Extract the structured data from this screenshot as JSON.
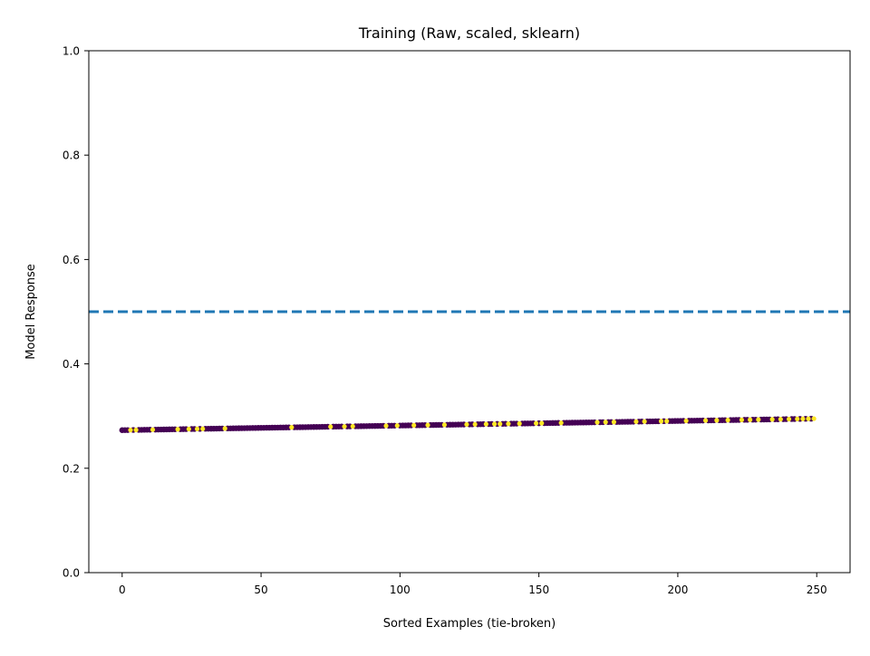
{
  "chart_data": {
    "type": "scatter",
    "title": "Training (Raw, scaled, sklearn)",
    "xlabel": "Sorted Examples (tie-broken)",
    "ylabel": "Model Response",
    "xlim": [
      -12,
      262
    ],
    "ylim": [
      0.0,
      1.0
    ],
    "xticks": [
      0,
      50,
      100,
      150,
      200,
      250
    ],
    "xtick_labels": [
      "0",
      "50",
      "100",
      "150",
      "200",
      "250"
    ],
    "yticks": [
      0.0,
      0.2,
      0.4,
      0.6,
      0.8,
      1.0
    ],
    "ytick_labels": [
      "0.0",
      "0.2",
      "0.4",
      "0.6",
      "0.8",
      "1.0"
    ],
    "grid": false,
    "legend": "none",
    "threshold": {
      "y": 0.5,
      "style": "dashed",
      "color": "#1f77b4"
    },
    "series": [
      {
        "x_range": [
          0,
          249
        ],
        "count": 250,
        "y_start": 0.273,
        "y_end": 0.295,
        "colormap": "viridis",
        "color_dark": "#440154",
        "color_light": "#fde725",
        "highlighted_x": [
          3,
          5,
          11,
          20,
          24,
          27,
          29,
          37,
          61,
          75,
          80,
          83,
          95,
          99,
          105,
          110,
          116,
          124,
          127,
          131,
          134,
          136,
          139,
          143,
          149,
          151,
          158,
          171,
          174,
          177,
          185,
          188,
          194,
          196,
          203,
          210,
          214,
          218,
          223,
          226,
          229,
          234,
          237,
          240,
          243,
          245,
          247,
          249
        ]
      }
    ]
  }
}
